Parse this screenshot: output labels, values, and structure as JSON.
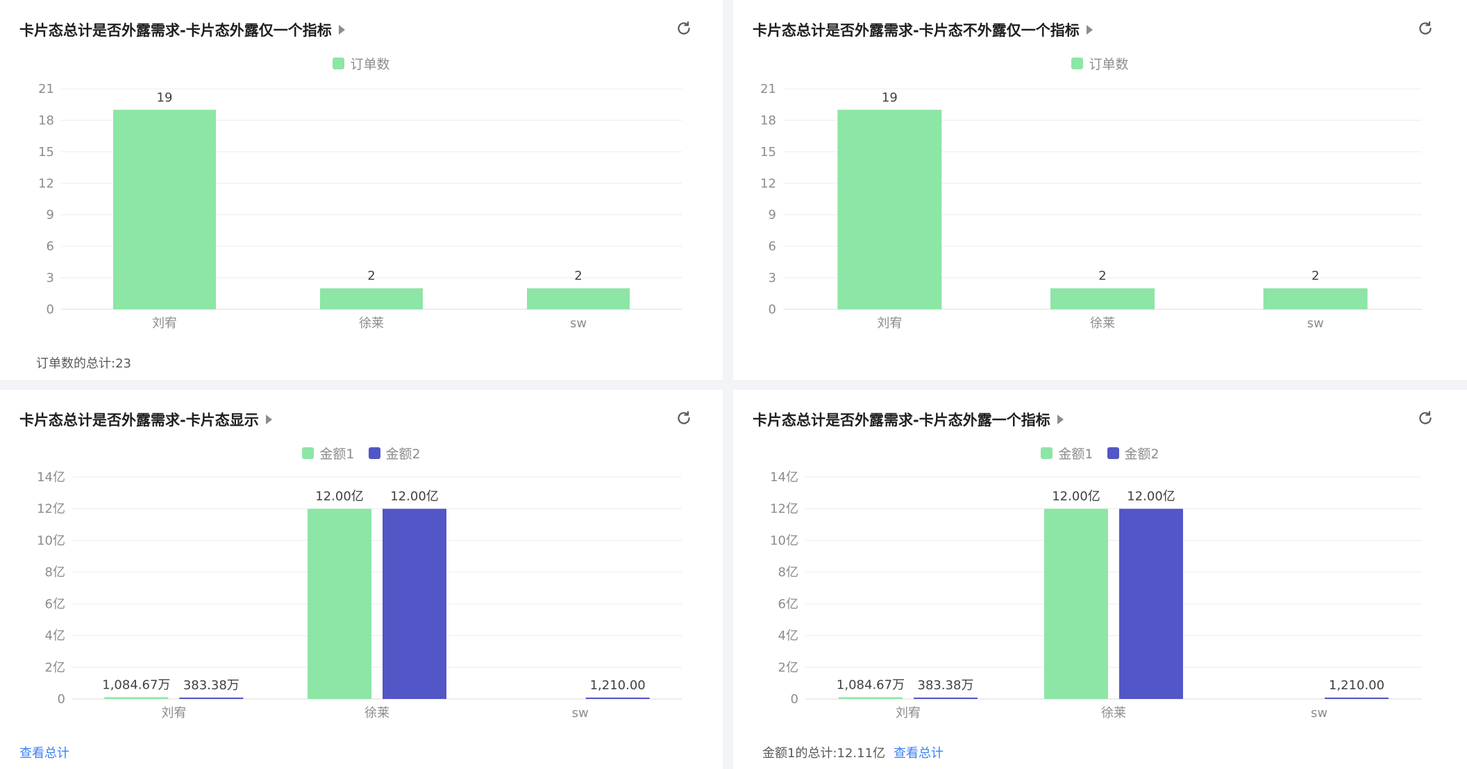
{
  "panels": [
    {
      "title": "卡片态总计是否外露需求-卡片态外露仅一个指标",
      "refresh_icon": "refresh-icon",
      "footer": {
        "summary": "订单数的总计:23",
        "link": ""
      },
      "chart_data": {
        "type": "bar",
        "categories": [
          "刘宥",
          "徐莱",
          "sw"
        ],
        "series": [
          {
            "name": "订单数",
            "color": "#8de5a6",
            "values": [
              19,
              2,
              2
            ],
            "labels": [
              "19",
              "2",
              "2"
            ]
          }
        ],
        "yticks": [
          0,
          3,
          6,
          9,
          12,
          15,
          18,
          21
        ],
        "yticklabels": [
          "0",
          "3",
          "6",
          "9",
          "12",
          "15",
          "18",
          "21"
        ],
        "ylim": [
          0,
          21
        ]
      }
    },
    {
      "title": "卡片态总计是否外露需求-卡片态不外露仅一个指标",
      "refresh_icon": "refresh-icon",
      "footer": {
        "summary": "",
        "link": ""
      },
      "chart_data": {
        "type": "bar",
        "categories": [
          "刘宥",
          "徐莱",
          "sw"
        ],
        "series": [
          {
            "name": "订单数",
            "color": "#8de5a6",
            "values": [
              19,
              2,
              2
            ],
            "labels": [
              "19",
              "2",
              "2"
            ]
          }
        ],
        "yticks": [
          0,
          3,
          6,
          9,
          12,
          15,
          18,
          21
        ],
        "yticklabels": [
          "0",
          "3",
          "6",
          "9",
          "12",
          "15",
          "18",
          "21"
        ],
        "ylim": [
          0,
          21
        ]
      }
    },
    {
      "title": "卡片态总计是否外露需求-卡片态显示",
      "refresh_icon": "refresh-icon",
      "footer": {
        "summary": "",
        "link": "查看总计"
      },
      "chart_data": {
        "type": "bar",
        "categories": [
          "刘宥",
          "徐莱",
          "sw"
        ],
        "series": [
          {
            "name": "金额1",
            "color": "#8de5a6",
            "values": [
              10846700,
              1200000000,
              0
            ],
            "labels": [
              "1,084.67万",
              "12.00亿",
              ""
            ]
          },
          {
            "name": "金额2",
            "color": "#5356c6",
            "values": [
              3833800,
              1200000000,
              1210
            ],
            "labels": [
              "383.38万",
              "12.00亿",
              "1,210.00"
            ]
          }
        ],
        "yticks": [
          0,
          200000000,
          400000000,
          600000000,
          800000000,
          1000000000,
          1200000000,
          1400000000
        ],
        "yticklabels": [
          "0",
          "2亿",
          "4亿",
          "6亿",
          "8亿",
          "10亿",
          "12亿",
          "14亿"
        ],
        "ylim": [
          0,
          1400000000
        ]
      }
    },
    {
      "title": "卡片态总计是否外露需求-卡片态外露一个指标",
      "refresh_icon": "refresh-icon",
      "footer": {
        "summary": "金额1的总计:12.11亿",
        "link": "查看总计"
      },
      "chart_data": {
        "type": "bar",
        "categories": [
          "刘宥",
          "徐莱",
          "sw"
        ],
        "series": [
          {
            "name": "金额1",
            "color": "#8de5a6",
            "values": [
              10846700,
              1200000000,
              0
            ],
            "labels": [
              "1,084.67万",
              "12.00亿",
              ""
            ]
          },
          {
            "name": "金额2",
            "color": "#5356c6",
            "values": [
              3833800,
              1200000000,
              1210
            ],
            "labels": [
              "383.38万",
              "12.00亿",
              "1,210.00"
            ]
          }
        ],
        "yticks": [
          0,
          200000000,
          400000000,
          600000000,
          800000000,
          1000000000,
          1200000000,
          1400000000
        ],
        "yticklabels": [
          "0",
          "2亿",
          "4亿",
          "6亿",
          "8亿",
          "10亿",
          "12亿",
          "14亿"
        ],
        "ylim": [
          0,
          1400000000
        ]
      }
    }
  ]
}
